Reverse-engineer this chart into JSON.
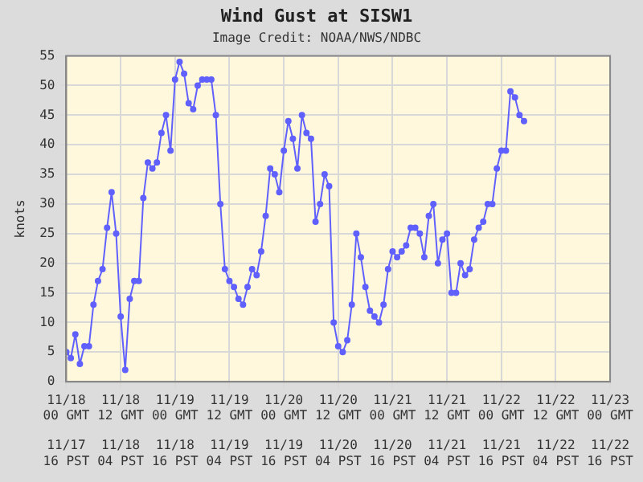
{
  "chart_data": {
    "type": "line",
    "title": "Wind Gust at SISW1",
    "subtitle": "Image Credit: NOAA/NWS/NDBC",
    "ylabel": "knots",
    "x": [
      "--11-18T00:00",
      "--11-18T01:00",
      "--11-18T02:00",
      "--11-18T03:00",
      "--11-18T04:00",
      "--11-18T05:00",
      "--11-18T06:00",
      "--11-18T07:00",
      "--11-18T08:00",
      "--11-18T09:00",
      "--11-18T10:00",
      "--11-18T11:00",
      "--11-18T12:00",
      "--11-18T13:00",
      "--11-18T14:00",
      "--11-18T15:00",
      "--11-18T16:00",
      "--11-18T17:00",
      "--11-18T18:00",
      "--11-18T19:00",
      "--11-18T20:00",
      "--11-18T21:00",
      "--11-18T22:00",
      "--11-18T23:00",
      "--11-19T00:00",
      "--11-19T01:00",
      "--11-19T02:00",
      "--11-19T03:00",
      "--11-19T04:00",
      "--11-19T05:00",
      "--11-19T06:00",
      "--11-19T07:00",
      "--11-19T08:00",
      "--11-19T09:00",
      "--11-19T10:00",
      "--11-19T11:00",
      "--11-19T12:00",
      "--11-19T13:00",
      "--11-19T14:00",
      "--11-19T15:00",
      "--11-19T16:00",
      "--11-19T17:00",
      "--11-19T18:00",
      "--11-19T19:00",
      "--11-19T20:00",
      "--11-19T21:00",
      "--11-19T22:00",
      "--11-19T23:00",
      "--11-20T00:00",
      "--11-20T01:00",
      "--11-20T02:00",
      "--11-20T03:00",
      "--11-20T04:00",
      "--11-20T05:00",
      "--11-20T06:00",
      "--11-20T07:00",
      "--11-20T08:00",
      "--11-20T09:00",
      "--11-20T10:00",
      "--11-20T11:00",
      "--11-20T12:00",
      "--11-20T13:00",
      "--11-20T14:00",
      "--11-20T15:00",
      "--11-20T16:00",
      "--11-20T17:00",
      "--11-20T18:00",
      "--11-20T19:00",
      "--11-20T20:00",
      "--11-20T21:00",
      "--11-20T22:00",
      "--11-20T23:00",
      "--11-21T00:00",
      "--11-21T01:00",
      "--11-21T02:00",
      "--11-21T03:00",
      "--11-21T04:00",
      "--11-21T05:00",
      "--11-21T06:00",
      "--11-21T07:00",
      "--11-21T08:00",
      "--11-21T09:00",
      "--11-21T10:00",
      "--11-21T11:00",
      "--11-21T12:00",
      "--11-21T13:00",
      "--11-21T14:00",
      "--11-21T15:00",
      "--11-21T16:00",
      "--11-21T17:00",
      "--11-21T18:00",
      "--11-21T19:00",
      "--11-21T20:00",
      "--11-21T21:00",
      "--11-21T22:00",
      "--11-21T23:00",
      "--11-22T00:00",
      "--11-22T01:00",
      "--11-22T02:00",
      "--11-22T03:00",
      "--11-22T04:00",
      "--11-22T05:00"
    ],
    "series": [
      {
        "color": "#6060ff",
        "values": [
          5,
          4,
          8,
          3,
          6,
          6,
          13,
          17,
          19,
          26,
          32,
          25,
          11,
          2,
          14,
          17,
          17,
          31,
          37,
          36,
          37,
          42,
          45,
          39,
          51,
          54,
          52,
          47,
          46,
          50,
          51,
          51,
          51,
          45,
          30,
          19,
          17,
          16,
          14,
          13,
          16,
          19,
          18,
          22,
          28,
          36,
          35,
          32,
          39,
          44,
          41,
          36,
          45,
          42,
          41,
          27,
          30,
          35,
          33,
          10,
          6,
          5,
          7,
          13,
          25,
          21,
          16,
          12,
          11,
          10,
          13,
          19,
          22,
          21,
          22,
          23,
          26,
          26,
          25,
          21,
          28,
          30,
          20,
          24,
          25,
          15,
          15,
          20,
          18,
          19,
          24,
          26,
          27,
          30,
          30,
          36,
          39,
          39,
          49,
          48,
          45,
          44
        ]
      }
    ],
    "xlim": [
      "--11-18T00:00",
      "--11-23T00:00"
    ],
    "xticks": [
      {
        "value": "--11-18T00:00",
        "label": "11/18 00 GMT"
      },
      {
        "value": "--11-18T12:00",
        "label": "11/18 12 GMT"
      },
      {
        "value": "--11-19T00:00",
        "label": "11/19 00 GMT"
      },
      {
        "value": "--11-19T12:00",
        "label": "11/19 12 GMT"
      },
      {
        "value": "--11-20T00:00",
        "label": "11/20 00 GMT"
      },
      {
        "value": "--11-20T12:00",
        "label": "11/20 12 GMT"
      },
      {
        "value": "--11-21T00:00",
        "label": "11/21 00 GMT"
      },
      {
        "value": "--11-21T12:00",
        "label": "11/21 12 GMT"
      },
      {
        "value": "--11-22T00:00",
        "label": "11/22 00 GMT"
      },
      {
        "value": "--11-22T12:00",
        "label": "11/22 12 GMT"
      },
      {
        "value": "--11-23T00:00",
        "label": "11/23 00 GMT"
      }
    ],
    "x2lim": [
      "--11-17T16:00",
      "--11-22T16:00"
    ],
    "x2ticks": [
      {
        "value": "--11-17T16:00",
        "label": "11/17 16 PST"
      },
      {
        "value": "--11-18T04:00",
        "label": "11/18 04 PST"
      },
      {
        "value": "--11-18T16:00",
        "label": "11/18 16 PST"
      },
      {
        "value": "--11-19T04:00",
        "label": "11/19 04 PST"
      },
      {
        "value": "--11-19T16:00",
        "label": "11/19 16 PST"
      },
      {
        "value": "--11-20T04:00",
        "label": "11/20 04 PST"
      },
      {
        "value": "--11-20T16:00",
        "label": "11/20 16 PST"
      },
      {
        "value": "--11-21T04:00",
        "label": "11/21 04 PST"
      },
      {
        "value": "--11-21T16:00",
        "label": "11/21 16 PST"
      },
      {
        "value": "--11-22T04:00",
        "label": "11/22 04 PST"
      },
      {
        "value": "--11-22T16:00",
        "label": "11/22 16 PST"
      }
    ],
    "ylim": [
      0,
      55
    ],
    "yticks": [
      0,
      5,
      10,
      15,
      20,
      25,
      30,
      35,
      40,
      45,
      50,
      55
    ],
    "grid": true,
    "legend": false,
    "marker": "circle",
    "line_style": "solid"
  }
}
